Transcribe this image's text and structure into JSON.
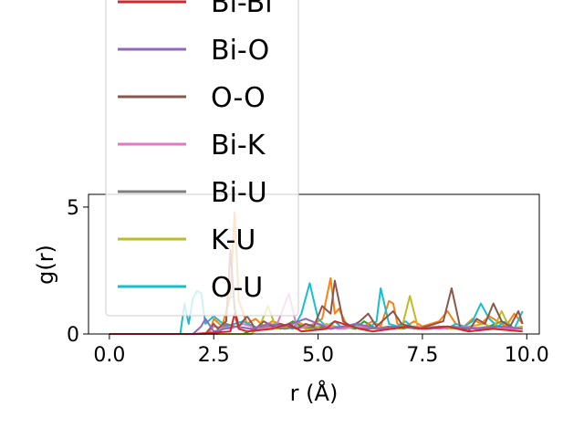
{
  "chart_data": {
    "type": "line",
    "xlabel": "r (Å)",
    "ylabel": "g(r)",
    "xlim": [
      -0.5,
      10.3
    ],
    "ylim": [
      0,
      5.5
    ],
    "xticks": [
      0.0,
      2.5,
      5.0,
      7.5,
      10.0
    ],
    "xtick_labels": [
      "0.0",
      "2.5",
      "5.0",
      "7.5",
      "10.0"
    ],
    "yticks": [
      0,
      5
    ],
    "ytick_labels": [
      "0",
      "5"
    ],
    "grid": false,
    "legend_placement": "upper-left",
    "legend_partially_clipped": true,
    "series": [
      {
        "name": "Bi-Bi",
        "color": "#d62728",
        "x": [
          0,
          2.0,
          2.9,
          3.0,
          3.1,
          3.3,
          3.9,
          4.1,
          4.3,
          4.6,
          5.2,
          5.4,
          6.0,
          6.3,
          7.2,
          7.5,
          8.1,
          8.6,
          9.2,
          9.9
        ],
        "y": [
          0,
          0,
          0.1,
          0.8,
          0.2,
          0.1,
          0.2,
          0.3,
          0.4,
          0.1,
          0.2,
          0.5,
          0.2,
          0.1,
          0.3,
          0.2,
          0.3,
          0.1,
          0.2,
          0.1
        ]
      },
      {
        "name": "Bi-O",
        "color": "#9467bd",
        "x": [
          0,
          2.0,
          2.2,
          2.3,
          2.5,
          3.0,
          3.4,
          3.8,
          4.2,
          4.7,
          5.3,
          5.9,
          6.5,
          7.0,
          7.6,
          8.2,
          8.8,
          9.4,
          9.9
        ],
        "y": [
          0,
          0,
          0.3,
          0.6,
          0.1,
          0.3,
          0.2,
          0.4,
          0.3,
          0.6,
          0.2,
          0.4,
          0.2,
          0.3,
          0.2,
          0.3,
          0.2,
          0.3,
          0.2
        ]
      },
      {
        "name": "O-O",
        "color": "#8c564b",
        "x": [
          0,
          2.3,
          2.5,
          2.6,
          2.8,
          2.9,
          3.0,
          3.1,
          3.3,
          3.5,
          3.7,
          3.9,
          4.1,
          4.3,
          4.5,
          4.7,
          4.9,
          5.1,
          5.3,
          5.4,
          5.6,
          5.8,
          6.0,
          6.2,
          6.4,
          6.6,
          6.8,
          7.0,
          7.2,
          7.4,
          7.6,
          7.8,
          8.0,
          8.2,
          8.4,
          8.6,
          8.8,
          9.0,
          9.2,
          9.4,
          9.6,
          9.8,
          9.9
        ],
        "y": [
          0,
          0,
          0.4,
          0.2,
          0.5,
          3.3,
          1.0,
          0.3,
          0.7,
          0.2,
          0.5,
          0.3,
          0.4,
          0.3,
          0.2,
          0.4,
          0.3,
          1.1,
          0.8,
          2.1,
          0.5,
          0.3,
          0.5,
          0.8,
          0.3,
          0.6,
          0.9,
          0.4,
          0.3,
          0.2,
          0.3,
          0.4,
          0.5,
          1.8,
          0.3,
          0.1,
          0.6,
          0.4,
          1.2,
          0.5,
          0.3,
          0.9,
          0.4
        ]
      },
      {
        "name": "Bi-K",
        "color": "#e377c2",
        "x": [
          0,
          2.3,
          2.5,
          2.9,
          3.2,
          3.6,
          4.0,
          4.3,
          4.5,
          5.0,
          5.5,
          6.1,
          6.7,
          7.3,
          7.9,
          8.5,
          9.1,
          9.9
        ],
        "y": [
          0,
          0,
          0.3,
          0.2,
          0.4,
          0.2,
          0.3,
          1.6,
          0.2,
          0.4,
          0.2,
          0.3,
          0.2,
          0.3,
          0.2,
          0.3,
          0.2,
          0.2
        ]
      },
      {
        "name": "Bi-U",
        "color": "#7f7f7f",
        "x": [
          0,
          2.6,
          2.8,
          3.0,
          3.4,
          3.8,
          4.2,
          4.6,
          5.0,
          5.6,
          6.2,
          6.8,
          7.4,
          8.0,
          8.6,
          9.2,
          9.9
        ],
        "y": [
          0,
          0,
          0.4,
          0.3,
          0.2,
          0.3,
          0.2,
          0.3,
          0.2,
          0.3,
          0.2,
          0.3,
          0.2,
          0.3,
          0.2,
          0.3,
          0.2
        ]
      },
      {
        "name": "K-U",
        "color": "#bcbd22",
        "x": [
          0,
          3.4,
          3.6,
          3.8,
          4.0,
          4.4,
          4.8,
          5.2,
          5.6,
          6.0,
          6.4,
          6.8,
          7.0,
          7.2,
          7.4,
          7.8,
          8.2,
          8.6,
          9.0,
          9.2,
          9.4,
          9.6,
          9.9
        ],
        "y": [
          0,
          0,
          0.3,
          1.1,
          0.2,
          0.3,
          0.2,
          0.4,
          0.2,
          0.3,
          0.2,
          0.3,
          0.2,
          1.5,
          0.2,
          0.3,
          0.2,
          0.3,
          0.4,
          0.2,
          0.9,
          0.2,
          0.3
        ]
      },
      {
        "name": "O-U",
        "color": "#17becf",
        "x": [
          0,
          1.7,
          1.8,
          1.9,
          2.0,
          2.1,
          2.2,
          2.3,
          2.5,
          2.8,
          3.2,
          3.6,
          4.0,
          4.4,
          4.6,
          4.8,
          5.0,
          5.2,
          5.4,
          5.6,
          5.8,
          6.0,
          6.2,
          6.4,
          6.5,
          6.7,
          6.9,
          7.1,
          7.3,
          7.5,
          7.7,
          7.9,
          8.1,
          8.3,
          8.5,
          8.7,
          8.9,
          9.1,
          9.3,
          9.5,
          9.7,
          9.9
        ],
        "y": [
          0,
          0,
          1.2,
          0.4,
          1.4,
          1.7,
          1.6,
          0.4,
          0.7,
          0.3,
          0.5,
          0.2,
          0.4,
          0.2,
          0.8,
          2.0,
          0.6,
          0.3,
          0.5,
          0.2,
          0.3,
          0.4,
          0.2,
          0.5,
          1.8,
          0.4,
          0.3,
          0.5,
          0.2,
          0.3,
          0.2,
          0.3,
          0.2,
          0.4,
          0.3,
          0.5,
          1.2,
          0.6,
          0.3,
          0.5,
          0.2,
          0.9
        ]
      },
      {
        "name": "",
        "color": "#ff7f0e",
        "x": [
          0,
          2.4,
          2.5,
          2.7,
          2.9,
          3.0,
          3.1,
          3.3,
          3.5,
          3.7,
          3.9,
          4.1,
          4.3,
          4.5,
          4.7,
          4.9,
          5.1,
          5.3,
          5.4,
          5.5,
          5.7,
          5.9,
          6.1,
          6.3,
          6.5,
          6.7,
          6.8,
          6.9,
          7.1,
          7.3,
          7.5,
          7.7,
          7.9,
          8.1,
          8.3,
          8.5,
          8.7,
          8.9,
          9.1,
          9.3,
          9.5,
          9.7,
          9.9
        ],
        "y": [
          0,
          0,
          0.6,
          0.3,
          1.5,
          4.8,
          1.3,
          0.4,
          0.6,
          0.3,
          0.5,
          0.4,
          0.3,
          0.5,
          0.3,
          0.4,
          0.6,
          2.2,
          0.8,
          1.0,
          0.3,
          0.4,
          0.3,
          0.5,
          0.3,
          1.3,
          1.2,
          0.4,
          0.3,
          0.5,
          0.3,
          0.4,
          0.5,
          0.9,
          0.4,
          0.3,
          0.6,
          0.4,
          0.7,
          0.5,
          0.3,
          0.8,
          0.4
        ]
      },
      {
        "name": "",
        "color": "#2ca02c",
        "x": [
          0,
          3.2,
          3.5,
          3.8,
          4.1,
          4.4,
          4.7,
          5.0,
          5.3,
          5.6,
          5.9,
          6.1,
          6.4,
          6.7,
          7.0,
          7.3,
          7.6,
          7.9,
          8.2,
          8.5,
          8.8,
          9.1,
          9.4,
          9.7,
          9.9
        ],
        "y": [
          0,
          0,
          0.2,
          0.4,
          0.2,
          0.5,
          0.2,
          0.3,
          0.2,
          0.3,
          0.2,
          0.5,
          0.2,
          0.3,
          0.2,
          0.3,
          0.2,
          0.3,
          0.2,
          0.3,
          0.2,
          0.3,
          0.5,
          0.2,
          0.3
        ]
      }
    ]
  }
}
